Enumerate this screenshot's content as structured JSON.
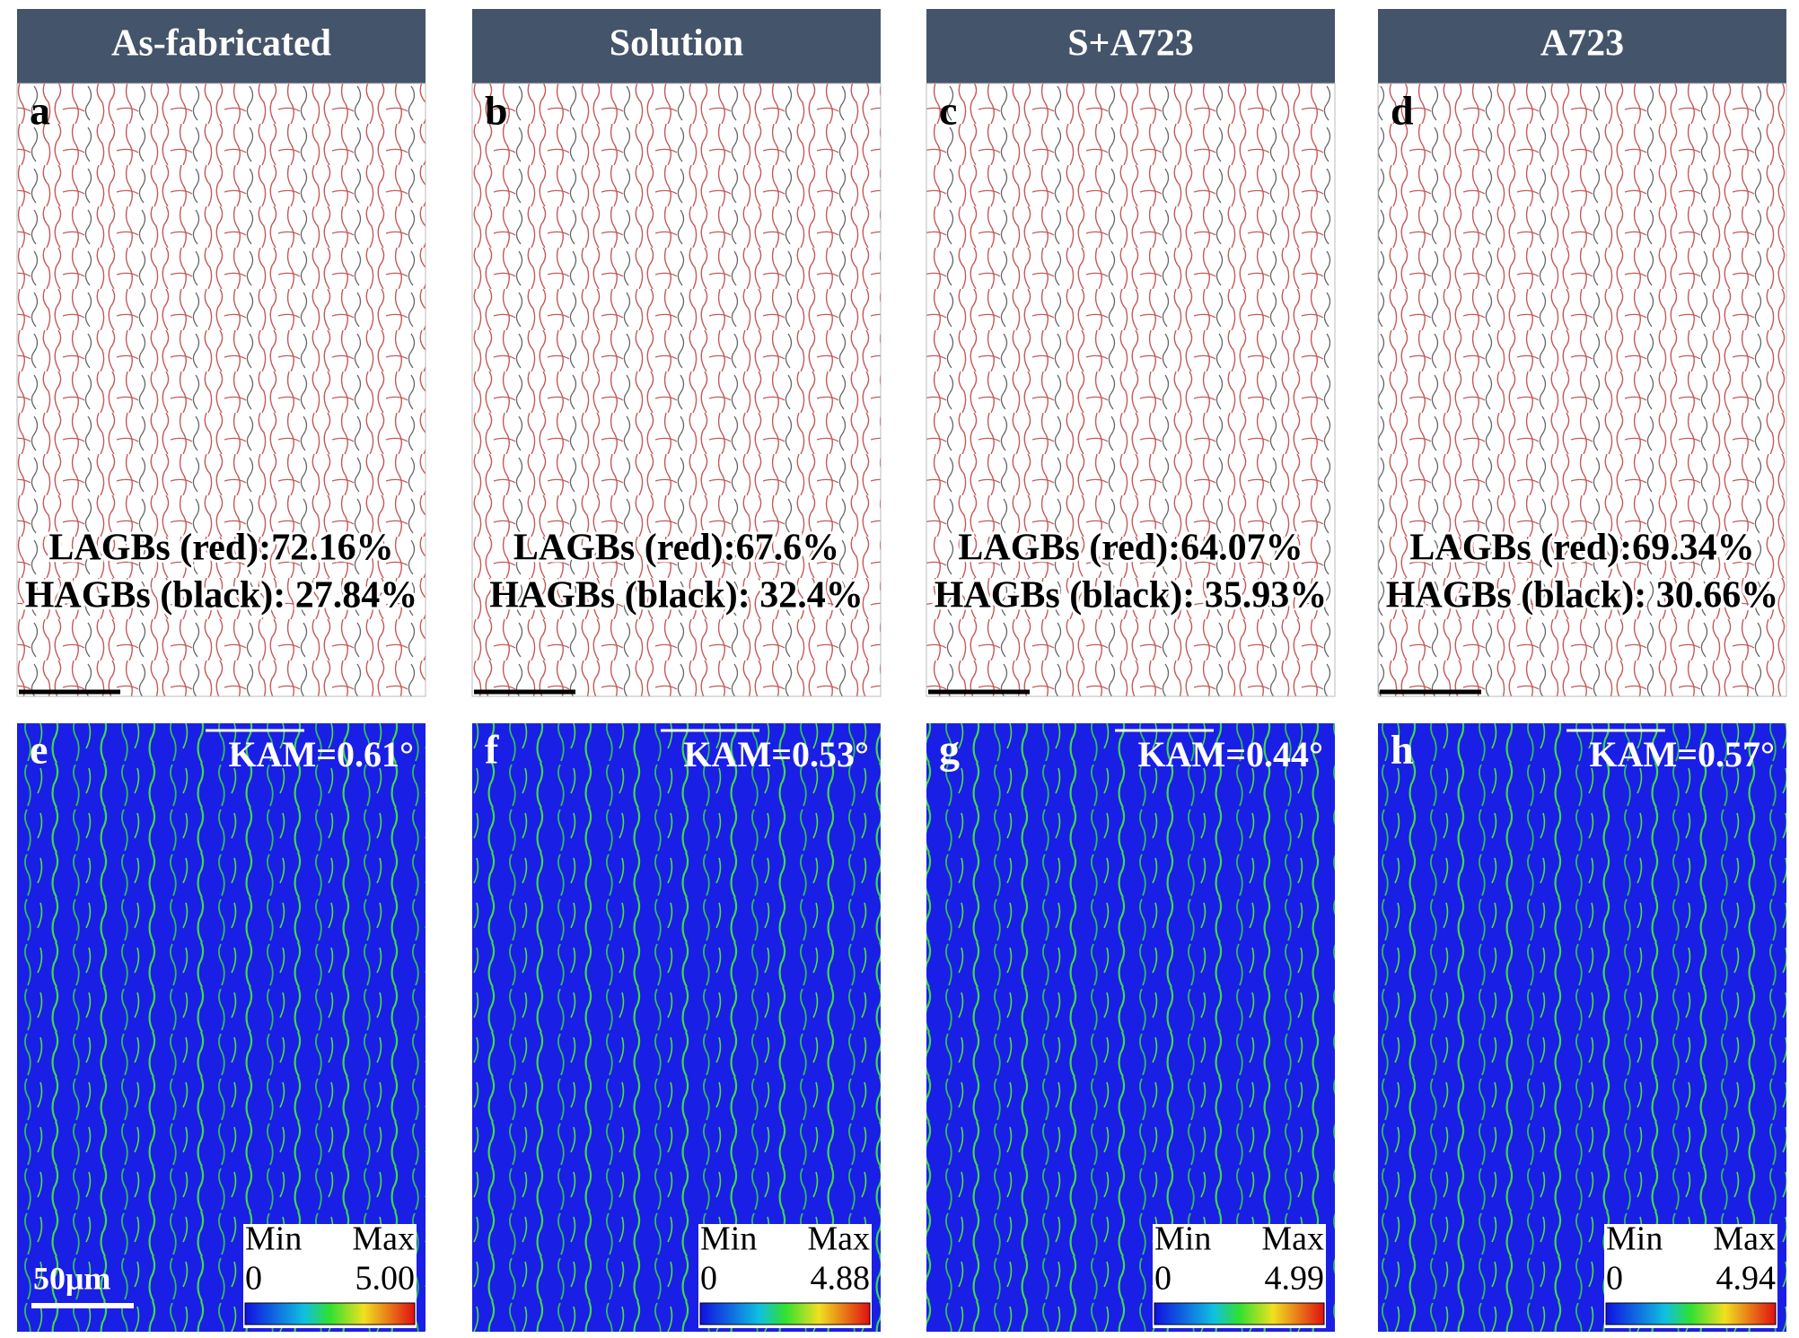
{
  "panels": [
    {
      "header": "As-fabricated",
      "top_letter": "a",
      "lagb": "LAGBs (red):72.16%",
      "hagb": "HAGBs (black): 27.84%",
      "bottom_letter": "e",
      "kam": "KAM=0.61°",
      "legend_min_label": "Min",
      "legend_max_label": "Max",
      "legend_min": "0",
      "legend_max": "5.00"
    },
    {
      "header": "Solution",
      "top_letter": "b",
      "lagb": "LAGBs (red):67.6%",
      "hagb": "HAGBs (black): 32.4%",
      "bottom_letter": "f",
      "kam": "KAM=0.53°",
      "legend_min_label": "Min",
      "legend_max_label": "Max",
      "legend_min": "0",
      "legend_max": "4.88"
    },
    {
      "header": "S+A723",
      "top_letter": "c",
      "lagb": "LAGBs (red):64.07%",
      "hagb": "HAGBs (black): 35.93%",
      "bottom_letter": "g",
      "kam": "KAM=0.44°",
      "legend_min_label": "Min",
      "legend_max_label": "Max",
      "legend_min": "0",
      "legend_max": "4.99"
    },
    {
      "header": "A723",
      "top_letter": "d",
      "lagb": "LAGBs (red):69.34%",
      "hagb": "HAGBs (black): 30.66%",
      "bottom_letter": "h",
      "kam": "KAM=0.57°",
      "legend_min_label": "Min",
      "legend_max_label": "Max",
      "legend_min": "0",
      "legend_max": "4.94"
    }
  ],
  "scale_bar": "50μm"
}
